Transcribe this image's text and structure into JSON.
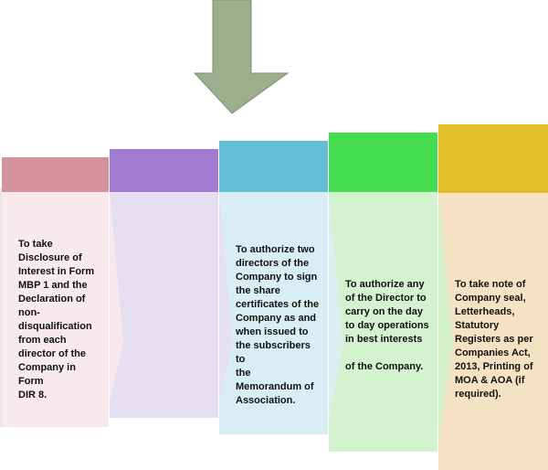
{
  "steps": [
    {
      "text": "To take\nDisclosure of\nInterest in Form\nMBP 1 and the\nDeclaration of\nnon-\ndisqualification\nfrom each\ndirector of the\nCompany in Form\nDIR 8.",
      "head_color": "#d4929f",
      "body_color": "#f7e9ec"
    },
    {
      "text": "",
      "head_color": "#a07bd0",
      "body_color": "#e6dff1"
    },
    {
      "text": "To authorize two\ndirectors of the\nCompany to sign\nthe share\ncertificates of the\nCompany as and\nwhen issued to\nthe subscribers to\nthe\nMemorandum of\nAssociation.",
      "head_color": "#62bdd6",
      "body_color": "#d9eef4"
    },
    {
      "text": "To authorize any\nof the Director to\ncarry on the day\nto day operations\nin best interests\n\nof the Company.",
      "head_color": "#44dd4f",
      "body_color": "#d2f3cd"
    },
    {
      "text": "To take note of\nCompany seal,\nLetterheads,\nStatutory\nRegisters as per\nCompanies Act,\n2013, Printing of\nMOA & AOA (if\nrequired).",
      "head_color": "#e4bd2b",
      "body_color": "#f5e1c3"
    }
  ],
  "arrow_color": "#9cae8b"
}
